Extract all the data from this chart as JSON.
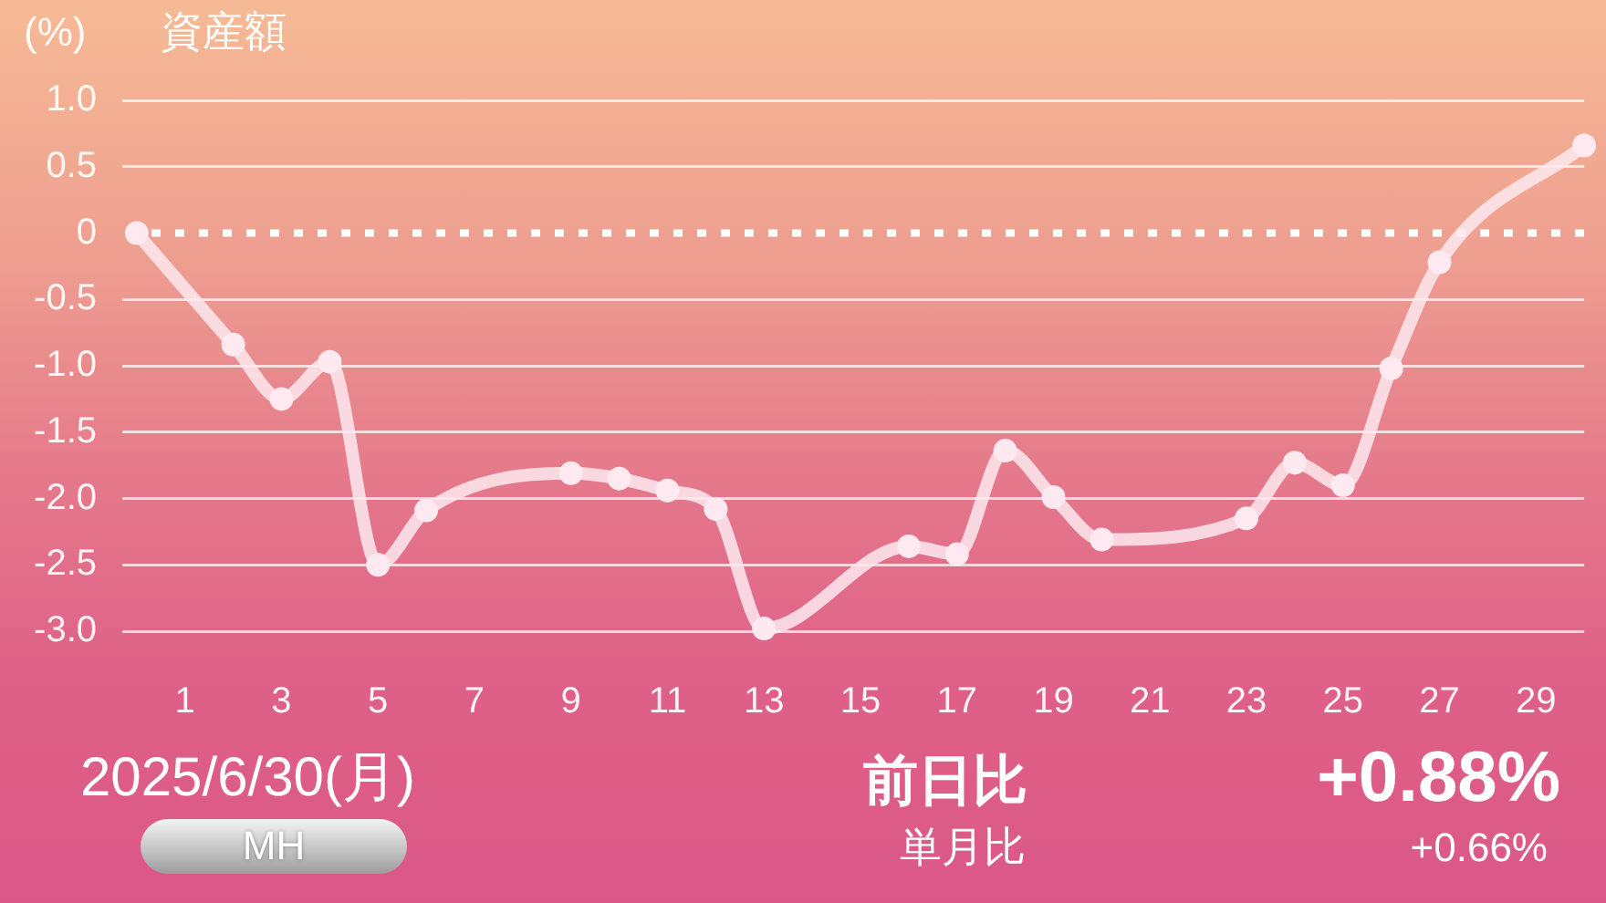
{
  "chart_data": {
    "type": "line",
    "title": "資産額",
    "ylabel": "(%)",
    "x": [
      0,
      2,
      3,
      4,
      5,
      6,
      9,
      10,
      11,
      12,
      13,
      16,
      17,
      18,
      19,
      20,
      23,
      24,
      25,
      26,
      27,
      30
    ],
    "series": [
      {
        "color": "#fde9ef",
        "values": [
          0,
          -0.84,
          -1.25,
          -0.97,
          -2.5,
          -2.09,
          -1.81,
          -1.85,
          -1.94,
          -2.08,
          -2.98,
          -2.36,
          -2.42,
          -1.64,
          -1.99,
          -2.31,
          -2.15,
          -1.73,
          -1.9,
          -1.02,
          -0.22,
          0.66
        ]
      }
    ],
    "xlim": [
      -0.3,
      30
    ],
    "xticks": [
      1,
      3,
      5,
      7,
      9,
      11,
      13,
      15,
      17,
      19,
      21,
      23,
      25,
      27,
      29
    ],
    "ylim": [
      -3,
      1
    ],
    "yticks": [
      {
        "value": 1,
        "label": "1.0"
      },
      0.5,
      0,
      -0.5,
      {
        "value": -1,
        "label": "-1.0"
      },
      {
        "value": -1.5,
        "label": "-1.5"
      },
      {
        "value": -2,
        "label": "-2.0"
      },
      {
        "value": -2.5,
        "label": "-2.5"
      },
      {
        "value": -3,
        "label": "-3.0"
      }
    ],
    "ref_lines": [
      {
        "axis": "y",
        "value": 0,
        "color": "#ffffff",
        "line_style": "dotted"
      }
    ],
    "grid": "y",
    "marker": "circle",
    "line_style": "solid",
    "annotations": [
      "2025/6/30(月)",
      "MH",
      "前日比",
      "+0.88%",
      "単月比",
      "+0.66%"
    ]
  }
}
